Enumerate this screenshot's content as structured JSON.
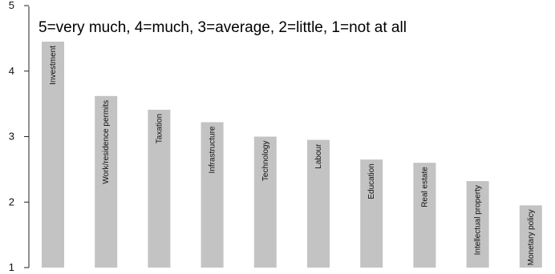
{
  "chart_data": {
    "type": "bar",
    "title": "",
    "note": "5=very much, 4=much, 3=average, 2=little, 1=not at all",
    "xlabel": "",
    "ylabel": "",
    "ylim": [
      1,
      5
    ],
    "yticks": [
      1,
      2,
      3,
      4,
      5
    ],
    "grid": false,
    "bar_color": "#c3c3c3",
    "categories": [
      "Investment",
      "Work/residence permits",
      "Taxation",
      "Infrastructure",
      "Technology",
      "Labour",
      "Education",
      "Real estate",
      "Intellectual property",
      "Monetary policy"
    ],
    "values": [
      4.45,
      3.62,
      3.41,
      3.22,
      3.0,
      2.95,
      2.65,
      2.6,
      2.32,
      1.95
    ]
  }
}
